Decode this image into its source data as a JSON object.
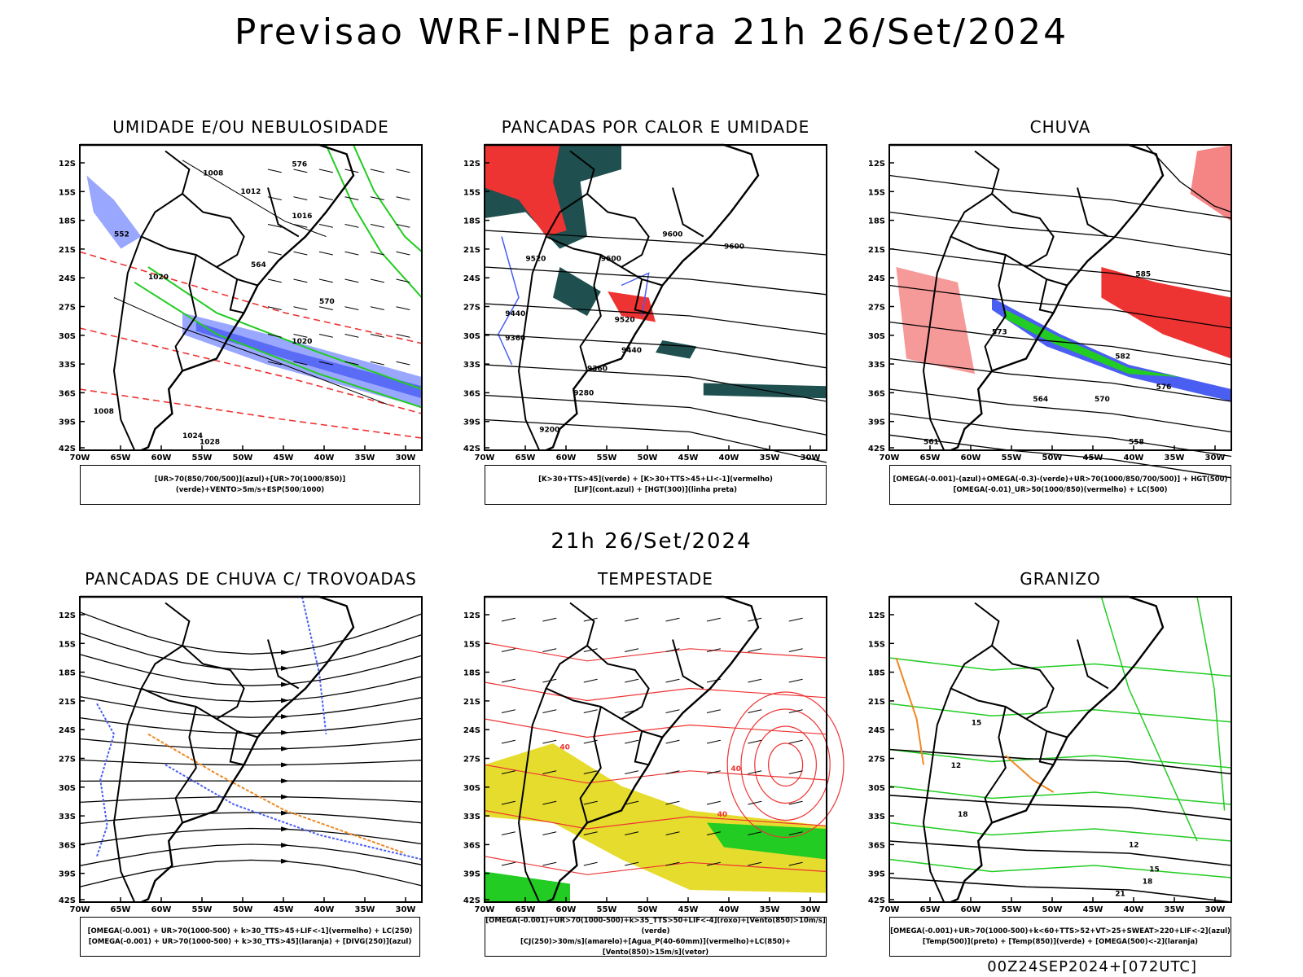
{
  "title": "Previsao WRF-INPE  para 21h 26/Set/2024",
  "subtitle_middle": "21h 26/Set/2024",
  "footer": "00Z24SEP2024+[072UTC]",
  "axes": {
    "lat_labels": [
      "12S",
      "15S",
      "18S",
      "21S",
      "24S",
      "27S",
      "30S",
      "33S",
      "36S",
      "39S",
      "42S"
    ],
    "lon_labels": [
      "70W",
      "65W",
      "60W",
      "55W",
      "50W",
      "45W",
      "40W",
      "35W",
      "30W"
    ]
  },
  "colors": {
    "blue": "#4a5ef2",
    "lightblue": "#9aa7ff",
    "green": "#22cc22",
    "red": "#ee3333",
    "darkteal": "#1f4f4f",
    "yellow": "#e6dc2e",
    "orange": "#ee8822",
    "black": "#000000"
  },
  "panels": [
    {
      "title": "UMIDADE E/OU NEBULOSIDADE",
      "legend": [
        "[UR>70(850/700/500)](azul)+[UR>70(1000/850)](verde)+VENTO>5m/s+ESP(500/1000)"
      ],
      "labels": [
        "1008",
        "1012",
        "1016",
        "1020",
        "1024",
        "1028",
        "552",
        "564",
        "570",
        "576",
        "1008",
        "1020"
      ]
    },
    {
      "title": "PANCADAS POR CALOR E UMIDADE",
      "legend": [
        "[K>30+TTS>45](verde) + [K>30+TTS>45+LI<-1](vermelho)",
        "[LIF](cont.azul) + [HGT(300)](linha preta)"
      ],
      "labels": [
        "9600",
        "9520",
        "9440",
        "9360",
        "9280",
        "9200",
        "9600",
        "9600",
        "9520",
        "9440",
        "9360"
      ]
    },
    {
      "title": "CHUVA",
      "legend": [
        "[OMEGA(-0.001)-(azul)+OMEGA(-0.3)-(verde)+UR>70(1000/850/700/500)] + HGT(500)",
        "[OMEGA(-0.01)_UR>50(1000/850)(vermelho) + LC(500)"
      ],
      "labels": [
        "585",
        "576",
        "570",
        "564",
        "561",
        "558",
        "582",
        "573"
      ]
    },
    {
      "title": "PANCADAS DE CHUVA C/ TROVOADAS",
      "legend": [
        "[OMEGA(-0.001) + UR>70(1000-500) + k>30_TTS>45+LIF<-1](vermelho) + LC(250)",
        "[OMEGA(-0.001) + UR>70(1000-500) + k>30_TTS>45](laranja) + [DIVG(250)](azul)"
      ],
      "labels": []
    },
    {
      "title": "TEMPESTADE",
      "legend": [
        "[OMEGA(-0.001)+UR>70(1000-500)+k>35_TTS>50+LIF<-4](roxo)+[Vento(850)>10m/s](verde)",
        "[CJ(250)>30m/s](amarelo)+[Agua_P(40-60mm)](vermelho)+LC(850)+[Vento(850)>15m/s](vetor)"
      ],
      "labels": [
        "40",
        "40",
        "40"
      ]
    },
    {
      "title": "GRANIZO",
      "legend": [
        "[OMEGA(-0.001)+UR>70(1000-500)+k<60+TTS>52+VT>25+SWEAT>220+LIF<-2](azul)",
        "[Temp(500)](preto) + [Temp(850)](verde) + [OMEGA(500)<-2](laranja)"
      ],
      "labels": [
        "12",
        "15",
        "18",
        "21",
        "12",
        "15",
        "18"
      ]
    }
  ]
}
